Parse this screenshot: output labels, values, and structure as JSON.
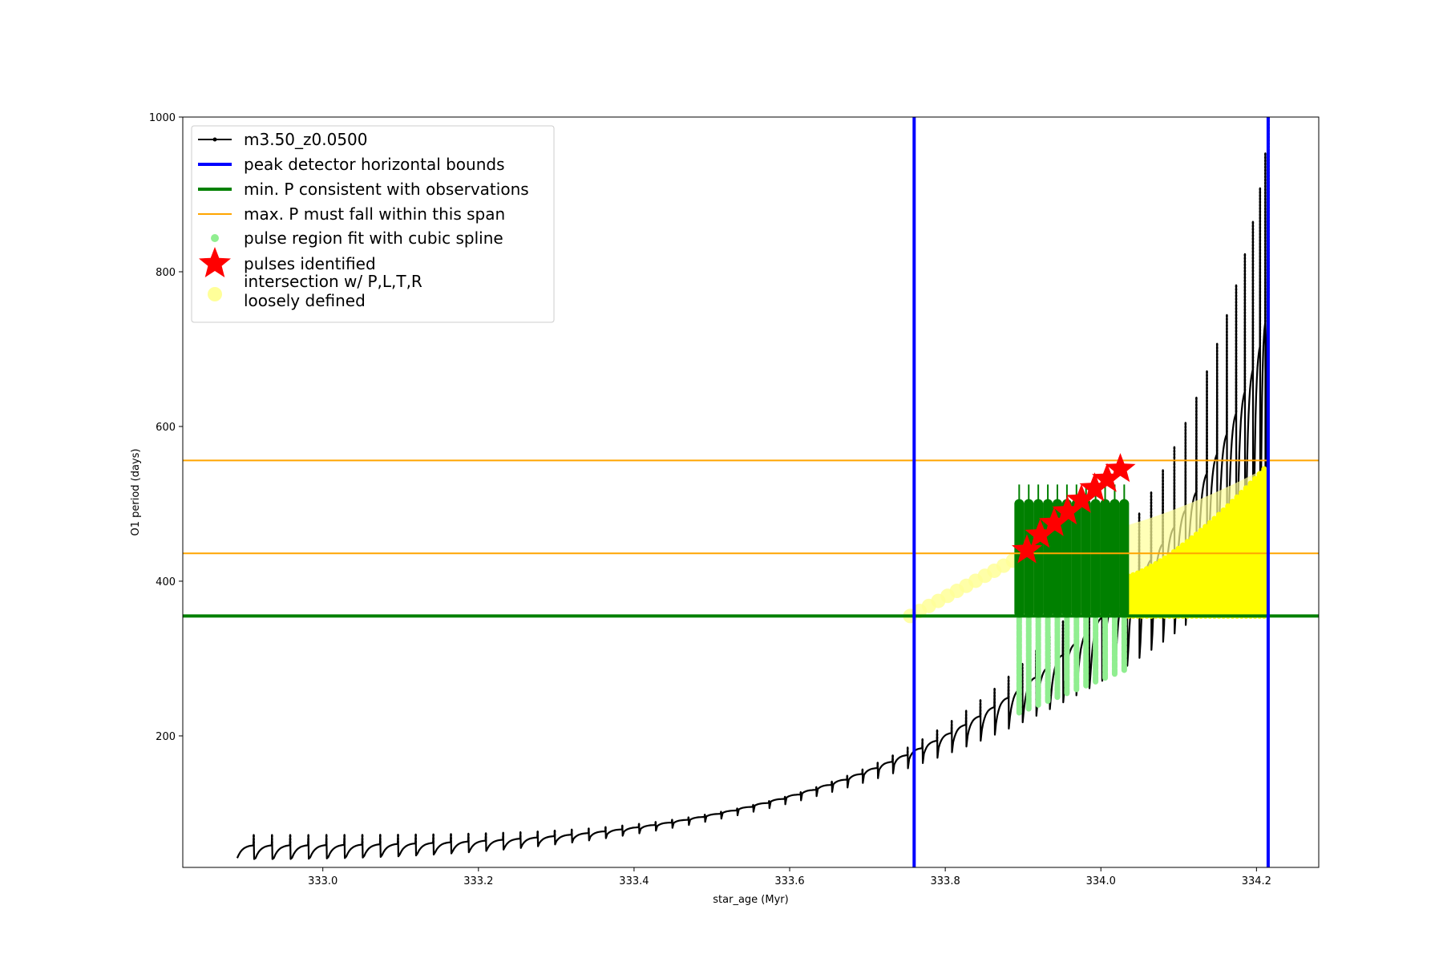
{
  "chart_data": {
    "type": "line",
    "xlabel": "star_age (Myr)",
    "ylabel": "O1 period (days)",
    "xlim": [
      332.82,
      334.28
    ],
    "ylim": [
      30,
      1000
    ],
    "x_ticks": [
      333.0,
      333.2,
      333.4,
      333.6,
      333.8,
      334.0,
      334.2
    ],
    "x_tick_labels": [
      "333.0",
      "333.2",
      "333.4",
      "333.6",
      "333.8",
      "334.0",
      "334.2"
    ],
    "y_ticks": [
      200,
      400,
      600,
      800,
      1000
    ],
    "y_tick_labels": [
      "200",
      "400",
      "600",
      "800",
      "1000"
    ],
    "grid": false,
    "legend_position": "top-left",
    "legend": [
      {
        "label": "m3.50_z0.0500",
        "kind": "line-marker",
        "color": "#000000"
      },
      {
        "label": "peak detector horizontal bounds",
        "kind": "line",
        "color": "#0000ff"
      },
      {
        "label": "min. P consistent with observations",
        "kind": "line",
        "color": "#008000"
      },
      {
        "label": "max. P must fall within this span",
        "kind": "line",
        "color": "#ffa500"
      },
      {
        "label": "pulse region fit with cubic spline",
        "kind": "dot",
        "color": "#90ee90"
      },
      {
        "label": "pulses identified",
        "kind": "star",
        "color": "#ff0000"
      },
      {
        "label": [
          "intersection w/ P,L,T,R",
          "loosely defined"
        ],
        "kind": "big-dot",
        "color": "#ffff99"
      }
    ],
    "vertical_lines": [
      333.76,
      334.215
    ],
    "min_P_line": 355,
    "max_P_span": [
      436,
      556
    ],
    "track": {
      "name": "m3.50_z0.0500",
      "pulse_count": 71,
      "x_start": 332.89,
      "x_end": 334.212,
      "trough_start": 42,
      "trough_end": 480,
      "peak_start": 72,
      "peak_end": 1000
    },
    "pulse_region": {
      "x": [
        333.895,
        334.03
      ],
      "y_low": 230,
      "y_high": 500
    },
    "min_P_bars": {
      "x": [
        333.895,
        334.03
      ],
      "y_low": 355,
      "y_high": 525
    },
    "pulses_identified": {
      "x": [
        333.905,
        333.922,
        333.94,
        333.957,
        333.975,
        333.992,
        334.008,
        334.025
      ],
      "y": [
        440,
        460,
        475,
        490,
        505,
        520,
        532,
        545
      ]
    },
    "intersection_region": {
      "x": [
        333.755,
        334.215
      ],
      "y_low": 355,
      "y_high": 555
    },
    "colors": {
      "track": "#000000",
      "blue": "#0000ff",
      "green": "#008000",
      "orange": "#ffa500",
      "lightgreen": "#90ee90",
      "red": "#ff0000",
      "yellow": "#ffff00",
      "paleyellow": "#ffff99"
    }
  }
}
